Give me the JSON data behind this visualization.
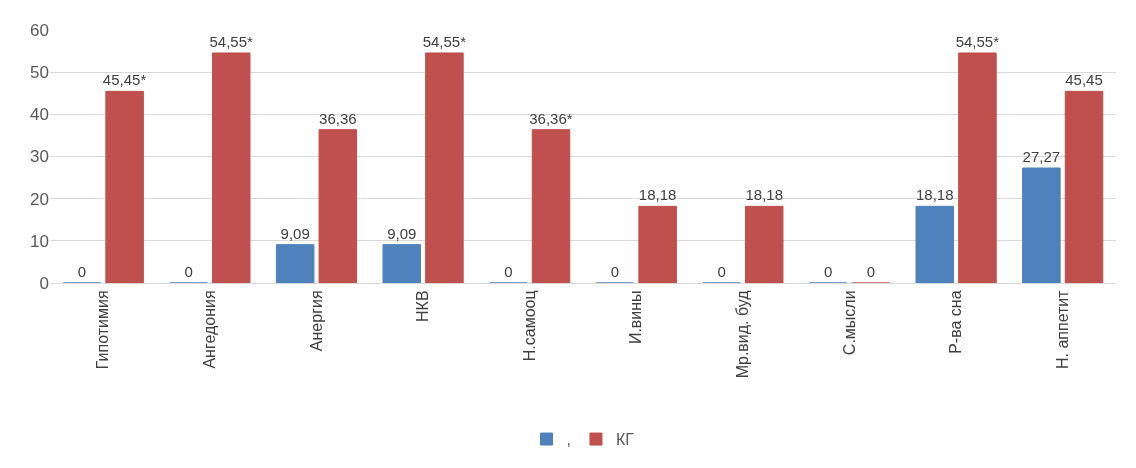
{
  "chart_data": {
    "type": "bar",
    "categories": [
      "Гипотимия",
      "Ангедония",
      "Анергия",
      "НКВ",
      "Н.самооц",
      "И.вины",
      "Мр.вид. буд",
      "С.мысли",
      "Р-ва сна",
      "Н. аппетит"
    ],
    "series": [
      {
        "name": ",",
        "color": "#4f81bd",
        "values": [
          0,
          0,
          9.09,
          9.09,
          0,
          0,
          0,
          0,
          18.18,
          27.27
        ],
        "value_labels": [
          "0",
          "0",
          "9,09",
          "9,09",
          "0",
          "0",
          "0",
          "0",
          "18,18",
          "27,27"
        ]
      },
      {
        "name": "КГ",
        "color": "#c0504d",
        "values": [
          45.45,
          54.55,
          36.36,
          54.55,
          36.36,
          18.18,
          18.18,
          0,
          54.55,
          45.45
        ],
        "value_labels": [
          "45,45*",
          "54,55*",
          "36,36",
          "54,55*",
          "36,36*",
          "18,18",
          "18,18",
          "0",
          "54,55*",
          "45,45"
        ]
      }
    ],
    "ylim": [
      0,
      60
    ],
    "yticks": [
      0,
      10,
      20,
      30,
      40,
      50,
      60
    ],
    "grid": "y",
    "legend": "bottom"
  }
}
